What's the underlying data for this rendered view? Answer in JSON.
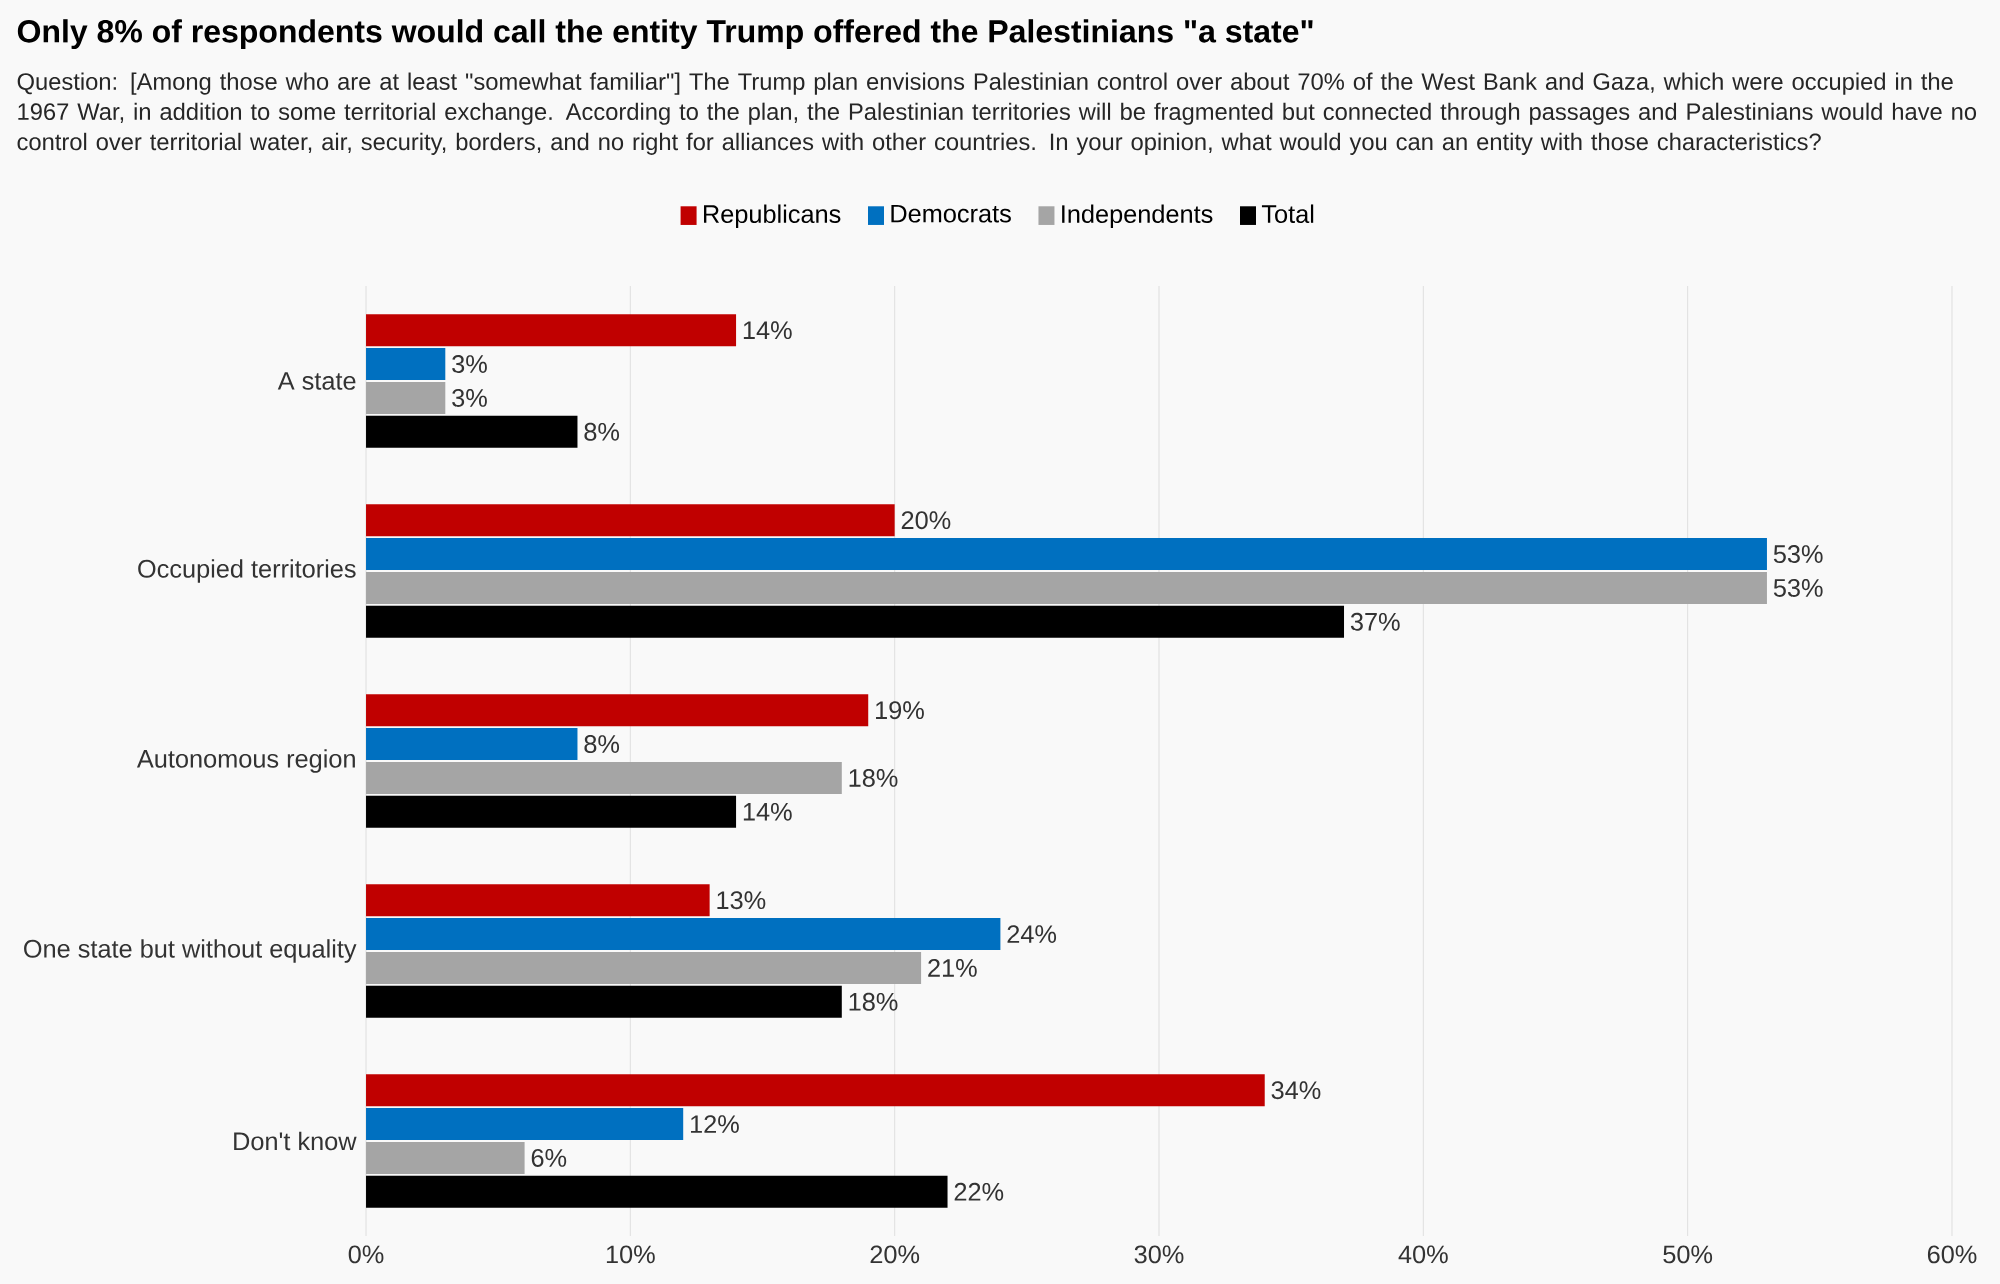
{
  "chart_data": {
    "type": "bar",
    "orientation": "horizontal",
    "title": "Only 8% of respondents would call the entity Trump offered the Palestinians \"a state\"",
    "subtitle": "Question: [Among those who are at least \"somewhat familiar\"] The Trump plan envisions Palestinian control over about 70% of the West Bank and Gaza, which were occupied in the 1967 War, in addition to some territorial exchange. According to the plan, the Palestinian territories will be fragmented but connected through passages and Palestinians would have no control over territorial water, air, security, borders, and no right for alliances with other countries. In your opinion, what would you can an entity with those characteristics?",
    "categories": [
      "A state",
      "Occupied territories",
      "Autonomous region",
      "One state but without equality",
      "Don't know"
    ],
    "series": [
      {
        "name": "Republicans",
        "color": "#c00000",
        "values": [
          14,
          20,
          19,
          13,
          34
        ],
        "value_labels": [
          "14%",
          "20%",
          "19%",
          "13%",
          "34%"
        ]
      },
      {
        "name": "Democrats",
        "color": "#0070c0",
        "values": [
          3,
          53,
          8,
          24,
          12
        ],
        "value_labels": [
          "3%",
          "53%",
          "8%",
          "24%",
          "12%"
        ]
      },
      {
        "name": "Independents",
        "color": "#a5a5a5",
        "values": [
          3,
          53,
          18,
          21,
          6
        ],
        "value_labels": [
          "3%",
          "53%",
          "18%",
          "21%",
          "6%"
        ]
      },
      {
        "name": "Total",
        "color": "#000000",
        "values": [
          8,
          37,
          14,
          18,
          22
        ],
        "value_labels": [
          "8%",
          "37%",
          "14%",
          "18%",
          "22%"
        ]
      }
    ],
    "xlim": [
      0,
      60
    ],
    "xticks": [
      {
        "value": 0,
        "label": "0%"
      },
      {
        "value": 10,
        "label": "10%"
      },
      {
        "value": 20,
        "label": "20%"
      },
      {
        "value": 30,
        "label": "30%"
      },
      {
        "value": 40,
        "label": "40%"
      },
      {
        "value": 50,
        "label": "50%"
      },
      {
        "value": 60,
        "label": "60%"
      }
    ],
    "grid": "x",
    "legend": "top"
  }
}
